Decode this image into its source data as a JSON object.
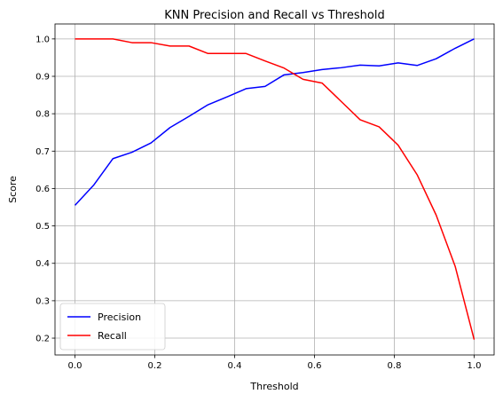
{
  "chart_data": {
    "type": "line",
    "title": "KNN Precision and Recall vs Threshold",
    "xlabel": "Threshold",
    "ylabel": "Score",
    "xlim": [
      -0.05,
      1.05
    ],
    "ylim": [
      0.155,
      1.04
    ],
    "xticks": [
      0.0,
      0.2,
      0.4,
      0.6,
      0.8,
      1.0
    ],
    "xtick_labels": [
      "0.0",
      "0.2",
      "0.4",
      "0.6",
      "0.8",
      "1.0"
    ],
    "yticks": [
      0.2,
      0.3,
      0.4,
      0.5,
      0.6,
      0.7,
      0.8,
      0.9,
      1.0
    ],
    "ytick_labels": [
      "0.2",
      "0.3",
      "0.4",
      "0.5",
      "0.6",
      "0.7",
      "0.8",
      "0.9",
      "1.0"
    ],
    "grid": true,
    "legend_position": "lower-left",
    "x": [
      0.0,
      0.0476,
      0.0952,
      0.1429,
      0.1905,
      0.2381,
      0.2857,
      0.3333,
      0.381,
      0.4286,
      0.4762,
      0.5238,
      0.5714,
      0.619,
      0.6667,
      0.7143,
      0.7619,
      0.8095,
      0.8571,
      0.9048,
      0.9524,
      1.0
    ],
    "series": [
      {
        "name": "Precision",
        "color": "#0000ff",
        "values": [
          0.555,
          0.61,
          0.68,
          0.697,
          0.722,
          0.763,
          0.793,
          0.824,
          0.845,
          0.867,
          0.873,
          0.904,
          0.91,
          0.918,
          0.923,
          0.93,
          0.928,
          0.936,
          0.929,
          0.947,
          0.975,
          1.0
        ]
      },
      {
        "name": "Recall",
        "color": "#ff0000",
        "values": [
          1.0,
          1.0,
          1.0,
          0.99,
          0.99,
          0.981,
          0.981,
          0.961,
          0.961,
          0.961,
          0.941,
          0.922,
          0.892,
          0.882,
          0.833,
          0.784,
          0.765,
          0.716,
          0.637,
          0.529,
          0.392,
          0.196
        ]
      }
    ]
  }
}
